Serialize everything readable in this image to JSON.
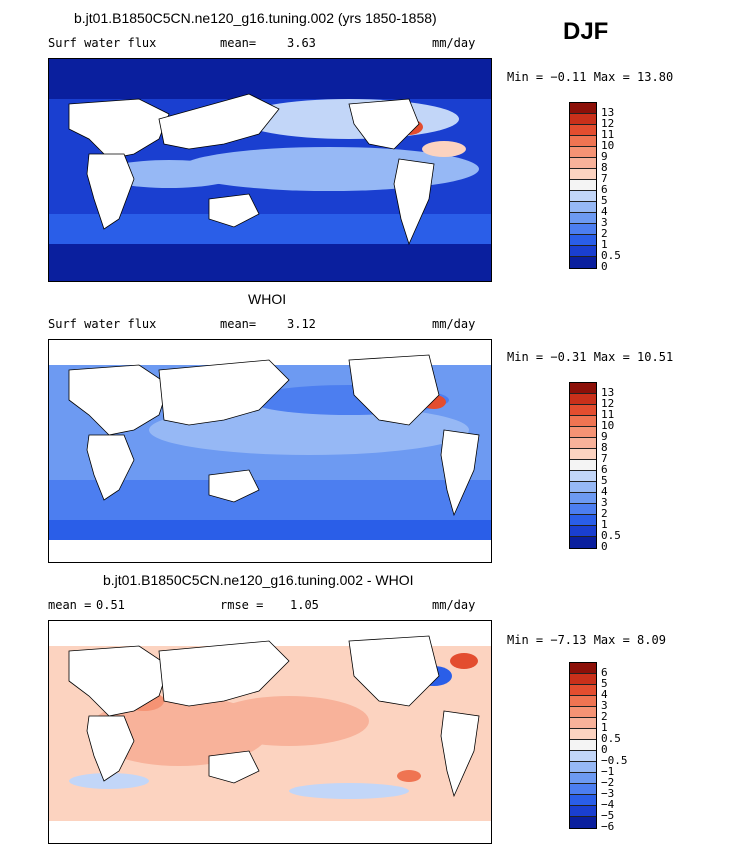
{
  "season": "DJF",
  "panels": [
    {
      "id": "model",
      "title": "b.jt01.B1850C5CN.ne120_g16.tuning.002 (yrs 1850-1858)",
      "field_label": "Surf water flux",
      "stat_label": "mean=",
      "stat_value": "3.63",
      "units": "mm/day",
      "minmax": "Min =  −0.11 Max =  13.80",
      "colorbar_labels": [
        "13",
        "12",
        "11",
        "10",
        "9",
        "8",
        "7",
        "6",
        "5",
        "4",
        "3",
        "2",
        "1",
        "0.5",
        "0"
      ]
    },
    {
      "id": "obs",
      "title": "WHOI",
      "field_label": "Surf water flux",
      "stat_label": "mean=",
      "stat_value": "3.12",
      "units": "mm/day",
      "minmax": "Min =  −0.31 Max =  10.51",
      "colorbar_labels": [
        "13",
        "12",
        "11",
        "10",
        "9",
        "8",
        "7",
        "6",
        "5",
        "4",
        "3",
        "2",
        "1",
        "0.5",
        "0"
      ]
    },
    {
      "id": "diff",
      "title": "b.jt01.B1850C5CN.ne120_g16.tuning.002 - WHOI",
      "mean_label": "mean =",
      "mean_value": "0.51",
      "rmse_label": "rmse =",
      "rmse_value": "1.05",
      "units": "mm/day",
      "minmax": "Min =  −7.13 Max =   8.09",
      "colorbar_labels": [
        "6",
        "5",
        "4",
        "3",
        "2",
        "1",
        "0.5",
        "0",
        "−0.5",
        "−1",
        "−2",
        "−3",
        "−4",
        "−5",
        "−6"
      ]
    }
  ],
  "chart_data": [
    {
      "type": "heatmap",
      "title": "b.jt01.B1850C5CN.ne120_g16.tuning.002 (yrs 1850-1858)",
      "variable": "Surf water flux",
      "units": "mm/day",
      "mean": 3.63,
      "min": -0.11,
      "max": 13.8,
      "contour_levels": [
        0,
        0.5,
        1,
        2,
        3,
        4,
        5,
        6,
        7,
        8,
        9,
        10,
        11,
        12,
        13
      ],
      "colors": [
        "#0a1f9e",
        "#1a3fd0",
        "#2a5ee8",
        "#4c7ef0",
        "#6d9af2",
        "#96b8f5",
        "#c2d6f8",
        "#f4f4f4",
        "#fcd3c0",
        "#f8b29a",
        "#f59374",
        "#ef7452",
        "#e34d2f",
        "#c9301a",
        "#8c1008"
      ]
    },
    {
      "type": "heatmap",
      "title": "WHOI",
      "variable": "Surf water flux",
      "units": "mm/day",
      "mean": 3.12,
      "min": -0.31,
      "max": 10.51,
      "contour_levels": [
        0,
        0.5,
        1,
        2,
        3,
        4,
        5,
        6,
        7,
        8,
        9,
        10,
        11,
        12,
        13
      ],
      "colors": [
        "#0a1f9e",
        "#1a3fd0",
        "#2a5ee8",
        "#4c7ef0",
        "#6d9af2",
        "#96b8f5",
        "#c2d6f8",
        "#f4f4f4",
        "#fcd3c0",
        "#f8b29a",
        "#f59374",
        "#ef7452",
        "#e34d2f",
        "#c9301a",
        "#8c1008"
      ]
    },
    {
      "type": "heatmap",
      "title": "b.jt01.B1850C5CN.ne120_g16.tuning.002 - WHOI",
      "units": "mm/day",
      "mean": 0.51,
      "rmse": 1.05,
      "min": -7.13,
      "max": 8.09,
      "contour_levels": [
        -6,
        -5,
        -4,
        -3,
        -2,
        -1,
        -0.5,
        0,
        0.5,
        1,
        2,
        3,
        4,
        5,
        6
      ],
      "colors": [
        "#0a1f9e",
        "#1a3fd0",
        "#2a5ee8",
        "#4c7ef0",
        "#6d9af2",
        "#96b8f5",
        "#c2d6f8",
        "#f4f4f4",
        "#fcd3c0",
        "#f8b29a",
        "#f59374",
        "#ef7452",
        "#e34d2f",
        "#c9301a",
        "#8c1008"
      ]
    }
  ]
}
